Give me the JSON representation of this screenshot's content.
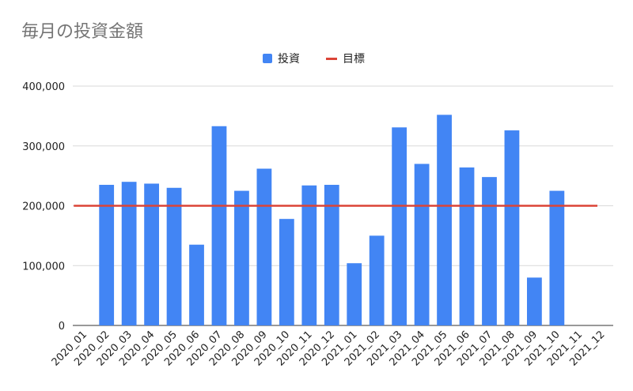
{
  "chart_data": {
    "type": "bar",
    "title": "毎月の投資金額",
    "categories": [
      "2020_01",
      "2020_02",
      "2020_03",
      "2020_04",
      "2020_05",
      "2020_06",
      "2020_07",
      "2020_08",
      "2020_09",
      "2020_10",
      "2020_11",
      "2020_12",
      "2021_01",
      "2021_02",
      "2021_03",
      "2021_04",
      "2021_05",
      "2021_06",
      "2021_07",
      "2021_08",
      "2021_09",
      "2021_10",
      "2021_11",
      "2021_12"
    ],
    "series": [
      {
        "name": "投資",
        "kind": "bar",
        "color": "#4285f4",
        "values": [
          null,
          235000,
          240000,
          237000,
          230000,
          135000,
          333000,
          225000,
          262000,
          178000,
          234000,
          235000,
          104000,
          150000,
          331000,
          270000,
          352000,
          264000,
          248000,
          326000,
          80000,
          225000,
          null,
          null
        ]
      },
      {
        "name": "目標",
        "kind": "line",
        "color": "#db4437",
        "values": [
          200000,
          200000,
          200000,
          200000,
          200000,
          200000,
          200000,
          200000,
          200000,
          200000,
          200000,
          200000,
          200000,
          200000,
          200000,
          200000,
          200000,
          200000,
          200000,
          200000,
          200000,
          200000,
          200000,
          200000
        ]
      }
    ],
    "xlabel": "",
    "ylabel": "",
    "ylim": [
      0,
      400000
    ],
    "yticks": [
      0,
      100000,
      200000,
      300000,
      400000
    ],
    "ytick_labels": [
      "0",
      "100,000",
      "200,000",
      "300,000",
      "400,000"
    ],
    "grid": true,
    "legend_position": "top-center",
    "gridline_color": "#d9d9d9",
    "axis_label_color": "#222222"
  }
}
